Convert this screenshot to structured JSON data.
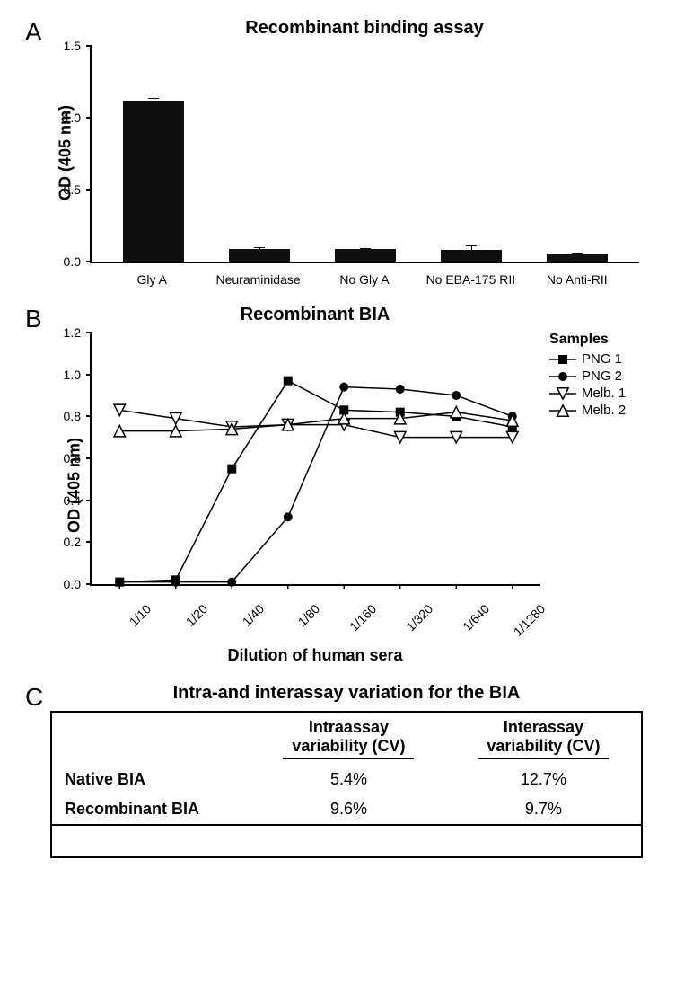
{
  "panelA": {
    "label": "A",
    "title": "Recombinant binding assay",
    "ylabel": "OD (405 nm)",
    "ylim": [
      0,
      1.5
    ],
    "yticks": [
      0.0,
      0.5,
      1.0,
      1.5
    ],
    "bar_color": "#0f0f0f",
    "categories": [
      "Gly A",
      "Neuraminidase",
      "No Gly A",
      "No EBA-175 RII",
      "No Anti-RII"
    ],
    "values": [
      1.12,
      0.09,
      0.085,
      0.08,
      0.05
    ],
    "errors": [
      0.015,
      0.01,
      0.008,
      0.03,
      0.008
    ]
  },
  "panelB": {
    "label": "B",
    "title": "Recombinant BIA",
    "ylabel": "OD (405 nm)",
    "xlabel": "Dilution of human sera",
    "ylim": [
      0,
      1.2
    ],
    "yticks": [
      0.0,
      0.2,
      0.4,
      0.6,
      0.8,
      1.0,
      1.2
    ],
    "x_categories": [
      "1/10",
      "1/20",
      "1/40",
      "1/80",
      "1/160",
      "1/320",
      "1/640",
      "1/1280"
    ],
    "legend_title": "Samples",
    "series": [
      {
        "name": "PNG 1",
        "marker": "square-filled",
        "values": [
          0.01,
          0.02,
          0.55,
          0.97,
          0.83,
          0.82,
          0.8,
          0.75
        ],
        "color": "#000000"
      },
      {
        "name": "PNG 2",
        "marker": "circle-filled",
        "values": [
          0.01,
          0.01,
          0.01,
          0.32,
          0.94,
          0.93,
          0.9,
          0.8
        ],
        "color": "#000000"
      },
      {
        "name": "Melb. 1",
        "marker": "triangle-down-open",
        "values": [
          0.83,
          0.79,
          0.75,
          0.76,
          0.76,
          0.7,
          0.7,
          0.7
        ],
        "color": "#000000"
      },
      {
        "name": "Melb. 2",
        "marker": "triangle-up-open",
        "values": [
          0.73,
          0.73,
          0.74,
          0.76,
          0.79,
          0.79,
          0.82,
          0.78
        ],
        "color": "#000000"
      }
    ],
    "line_width": 1.5
  },
  "panelC": {
    "label": "C",
    "title": "Intra-and interassay variation for the BIA",
    "columns": [
      "",
      "Intraassay variability (CV)",
      "Interassay variability (CV)"
    ],
    "col1_header_line1": "Intraassay",
    "col1_header_line2": "variability (CV)",
    "col2_header_line1": "Interassay",
    "col2_header_line2": "variability (CV)",
    "rows": [
      {
        "label": "Native BIA",
        "intra": "5.4%",
        "inter": "12.7%"
      },
      {
        "label": "Recombinant BIA",
        "intra": "9.6%",
        "inter": "9.7%"
      }
    ]
  }
}
